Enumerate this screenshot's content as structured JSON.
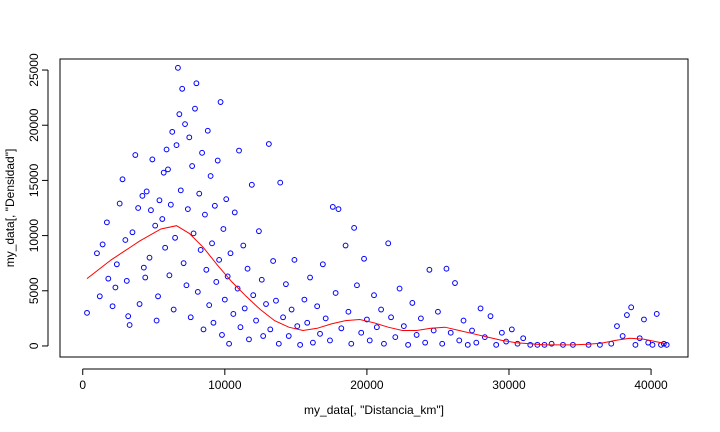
{
  "chart_data": {
    "type": "scatter",
    "title": "",
    "xlabel": "my_data[, \"Distancia_km\"]",
    "ylabel": "my_data[, \"Densidad\"]",
    "xlim": [
      -1600,
      42600
    ],
    "ylim": [
      -1000,
      26000
    ],
    "xticks": [
      0,
      10000,
      20000,
      30000,
      40000
    ],
    "yticks": [
      0,
      5000,
      10000,
      15000,
      20000,
      25000
    ],
    "grid": false,
    "legend": "none",
    "colors": {
      "points": "#0000ff",
      "smoother": "#ff0000",
      "axis": "#000000"
    },
    "series": [
      {
        "type": "scatter",
        "marker": "open-circle",
        "points": [
          [
            300,
            3000
          ],
          [
            1000,
            8400
          ],
          [
            1200,
            4500
          ],
          [
            1400,
            9200
          ],
          [
            1700,
            11200
          ],
          [
            1800,
            6100
          ],
          [
            2100,
            3600
          ],
          [
            2300,
            5300
          ],
          [
            2400,
            7400
          ],
          [
            2600,
            12900
          ],
          [
            2800,
            15100
          ],
          [
            3000,
            9600
          ],
          [
            3100,
            5900
          ],
          [
            3200,
            2700
          ],
          [
            3300,
            1900
          ],
          [
            3500,
            10300
          ],
          [
            3700,
            17300
          ],
          [
            3900,
            12500
          ],
          [
            4000,
            3800
          ],
          [
            4200,
            13600
          ],
          [
            4300,
            7100
          ],
          [
            4400,
            6200
          ],
          [
            4500,
            14000
          ],
          [
            4700,
            8000
          ],
          [
            4800,
            12300
          ],
          [
            4900,
            16900
          ],
          [
            5100,
            10900
          ],
          [
            5200,
            2300
          ],
          [
            5300,
            4500
          ],
          [
            5400,
            13200
          ],
          [
            5600,
            11500
          ],
          [
            5700,
            15700
          ],
          [
            5800,
            8900
          ],
          [
            5900,
            17800
          ],
          [
            6000,
            16000
          ],
          [
            6100,
            6400
          ],
          [
            6200,
            12800
          ],
          [
            6300,
            19400
          ],
          [
            6400,
            3300
          ],
          [
            6500,
            9800
          ],
          [
            6600,
            18200
          ],
          [
            6700,
            25200
          ],
          [
            6800,
            21000
          ],
          [
            6900,
            14100
          ],
          [
            7000,
            23300
          ],
          [
            7100,
            7500
          ],
          [
            7200,
            20100
          ],
          [
            7300,
            5500
          ],
          [
            7400,
            12400
          ],
          [
            7500,
            18900
          ],
          [
            7600,
            2600
          ],
          [
            7700,
            16300
          ],
          [
            7800,
            10200
          ],
          [
            7900,
            21500
          ],
          [
            8000,
            23800
          ],
          [
            8100,
            4900
          ],
          [
            8200,
            13800
          ],
          [
            8300,
            8700
          ],
          [
            8400,
            17500
          ],
          [
            8500,
            1500
          ],
          [
            8600,
            11900
          ],
          [
            8700,
            6900
          ],
          [
            8800,
            19500
          ],
          [
            8900,
            3700
          ],
          [
            9000,
            15400
          ],
          [
            9100,
            9300
          ],
          [
            9200,
            2100
          ],
          [
            9300,
            12700
          ],
          [
            9400,
            5800
          ],
          [
            9500,
            16800
          ],
          [
            9600,
            7800
          ],
          [
            9700,
            22100
          ],
          [
            9800,
            1000
          ],
          [
            9900,
            10600
          ],
          [
            10000,
            4200
          ],
          [
            10100,
            13300
          ],
          [
            10200,
            6300
          ],
          [
            10300,
            200
          ],
          [
            10400,
            8400
          ],
          [
            10600,
            2900
          ],
          [
            10700,
            12100
          ],
          [
            10900,
            5200
          ],
          [
            11000,
            17700
          ],
          [
            11100,
            1700
          ],
          [
            11300,
            9100
          ],
          [
            11400,
            3400
          ],
          [
            11600,
            7000
          ],
          [
            11700,
            600
          ],
          [
            11900,
            14600
          ],
          [
            12000,
            4600
          ],
          [
            12200,
            2300
          ],
          [
            12400,
            10400
          ],
          [
            12600,
            6000
          ],
          [
            12700,
            900
          ],
          [
            12900,
            3800
          ],
          [
            13100,
            18300
          ],
          [
            13200,
            1500
          ],
          [
            13400,
            7700
          ],
          [
            13600,
            4100
          ],
          [
            13800,
            200
          ],
          [
            13900,
            14800
          ],
          [
            14100,
            2600
          ],
          [
            14300,
            5600
          ],
          [
            14500,
            900
          ],
          [
            14700,
            3300
          ],
          [
            14900,
            7800
          ],
          [
            15100,
            1800
          ],
          [
            15300,
            100
          ],
          [
            15600,
            4200
          ],
          [
            15800,
            2100
          ],
          [
            16000,
            6200
          ],
          [
            16200,
            300
          ],
          [
            16500,
            3600
          ],
          [
            16700,
            1100
          ],
          [
            16900,
            7400
          ],
          [
            17100,
            2500
          ],
          [
            17400,
            500
          ],
          [
            17600,
            12600
          ],
          [
            17800,
            4800
          ],
          [
            18000,
            12400
          ],
          [
            18200,
            1600
          ],
          [
            18500,
            9100
          ],
          [
            18700,
            3100
          ],
          [
            18900,
            200
          ],
          [
            19100,
            10700
          ],
          [
            19300,
            5500
          ],
          [
            19600,
            1200
          ],
          [
            19800,
            7900
          ],
          [
            20000,
            2400
          ],
          [
            20200,
            500
          ],
          [
            20500,
            4600
          ],
          [
            20700,
            1700
          ],
          [
            21000,
            3300
          ],
          [
            21200,
            200
          ],
          [
            21500,
            9300
          ],
          [
            21700,
            2600
          ],
          [
            22000,
            800
          ],
          [
            22300,
            5200
          ],
          [
            22600,
            1800
          ],
          [
            22900,
            100
          ],
          [
            23200,
            3900
          ],
          [
            23500,
            1000
          ],
          [
            23800,
            2500
          ],
          [
            24100,
            300
          ],
          [
            24400,
            6900
          ],
          [
            24700,
            1400
          ],
          [
            25000,
            3100
          ],
          [
            25300,
            200
          ],
          [
            25600,
            7000
          ],
          [
            25900,
            1200
          ],
          [
            26200,
            5700
          ],
          [
            26500,
            500
          ],
          [
            26800,
            2300
          ],
          [
            27100,
            100
          ],
          [
            27400,
            1400
          ],
          [
            27700,
            300
          ],
          [
            28000,
            3400
          ],
          [
            28300,
            800
          ],
          [
            28700,
            2700
          ],
          [
            29100,
            100
          ],
          [
            29500,
            1200
          ],
          [
            29800,
            400
          ],
          [
            30200,
            1500
          ],
          [
            30600,
            200
          ],
          [
            31000,
            700
          ],
          [
            31500,
            100
          ],
          [
            32000,
            100
          ],
          [
            32500,
            100
          ],
          [
            33000,
            200
          ],
          [
            33800,
            100
          ],
          [
            34500,
            100
          ],
          [
            35600,
            100
          ],
          [
            36400,
            100
          ],
          [
            37200,
            200
          ],
          [
            37600,
            1800
          ],
          [
            38000,
            900
          ],
          [
            38300,
            2800
          ],
          [
            38600,
            3500
          ],
          [
            38900,
            100
          ],
          [
            39200,
            700
          ],
          [
            39500,
            2400
          ],
          [
            39800,
            300
          ],
          [
            40100,
            100
          ],
          [
            40400,
            2900
          ],
          [
            40700,
            100
          ],
          [
            40900,
            200
          ],
          [
            41100,
            100
          ]
        ]
      },
      {
        "type": "line",
        "points": [
          [
            300,
            6100
          ],
          [
            2000,
            7800
          ],
          [
            4000,
            9500
          ],
          [
            5500,
            10600
          ],
          [
            6600,
            10900
          ],
          [
            7500,
            10200
          ],
          [
            8500,
            8900
          ],
          [
            9500,
            7300
          ],
          [
            10500,
            5800
          ],
          [
            11500,
            4500
          ],
          [
            12500,
            3300
          ],
          [
            13500,
            2300
          ],
          [
            14500,
            1700
          ],
          [
            15500,
            1400
          ],
          [
            16500,
            1600
          ],
          [
            17500,
            2000
          ],
          [
            18500,
            2300
          ],
          [
            19500,
            2400
          ],
          [
            20500,
            2100
          ],
          [
            21500,
            1700
          ],
          [
            22500,
            1400
          ],
          [
            23500,
            1400
          ],
          [
            24500,
            1600
          ],
          [
            25500,
            1700
          ],
          [
            26500,
            1400
          ],
          [
            27500,
            1100
          ],
          [
            28500,
            800
          ],
          [
            29500,
            500
          ],
          [
            30500,
            300
          ],
          [
            31500,
            200
          ],
          [
            32500,
            100
          ],
          [
            33500,
            100
          ],
          [
            34500,
            100
          ],
          [
            35500,
            150
          ],
          [
            36500,
            250
          ],
          [
            37500,
            500
          ],
          [
            38500,
            700
          ],
          [
            39500,
            600
          ],
          [
            40500,
            350
          ],
          [
            41100,
            200
          ]
        ]
      }
    ]
  }
}
